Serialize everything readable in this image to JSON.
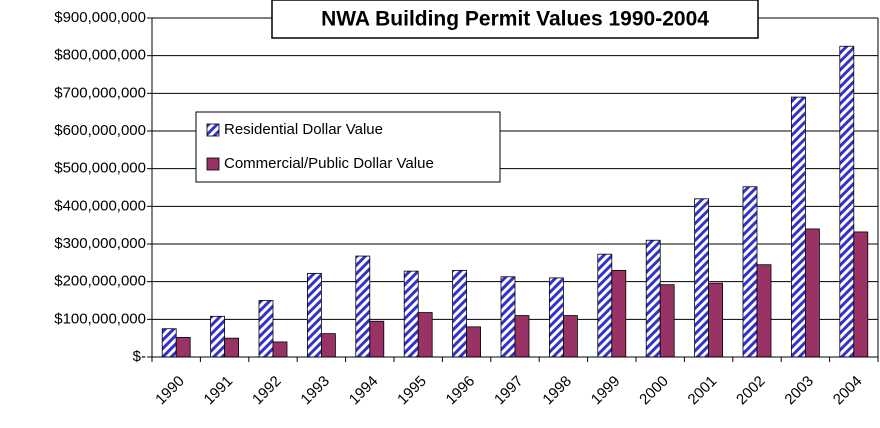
{
  "chart_data": {
    "type": "bar",
    "title": "NWA Building Permit Values 1990-2004",
    "categories": [
      "1990",
      "1991",
      "1992",
      "1993",
      "1994",
      "1995",
      "1996",
      "1997",
      "1998",
      "1999",
      "2000",
      "2001",
      "2002",
      "2003",
      "2004"
    ],
    "series": [
      {
        "name": "Residential Dollar Value",
        "color": "#3333cc",
        "hatch": true,
        "values": [
          75000000,
          108000000,
          150000000,
          222000000,
          268000000,
          228000000,
          230000000,
          213000000,
          210000000,
          273000000,
          310000000,
          420000000,
          452000000,
          690000000,
          825000000
        ]
      },
      {
        "name": "Commercial/Public Dollar Value",
        "color": "#993366",
        "hatch": false,
        "values": [
          52000000,
          50000000,
          40000000,
          62000000,
          95000000,
          118000000,
          80000000,
          110000000,
          110000000,
          230000000,
          192000000,
          196000000,
          245000000,
          340000000,
          332000000
        ]
      }
    ],
    "ylim": [
      0,
      900000000
    ],
    "yticks": [
      {
        "value": 0,
        "label": "$-"
      },
      {
        "value": 100000000,
        "label": "$100,000,000"
      },
      {
        "value": 200000000,
        "label": "$200,000,000"
      },
      {
        "value": 300000000,
        "label": "$300,000,000"
      },
      {
        "value": 400000000,
        "label": "$400,000,000"
      },
      {
        "value": 500000000,
        "label": "$500,000,000"
      },
      {
        "value": 600000000,
        "label": "$600,000,000"
      },
      {
        "value": 700000000,
        "label": "$700,000,000"
      },
      {
        "value": 800000000,
        "label": "$800,000,000"
      },
      {
        "value": 900000000,
        "label": "$900,000,000"
      }
    ],
    "grid": true
  }
}
